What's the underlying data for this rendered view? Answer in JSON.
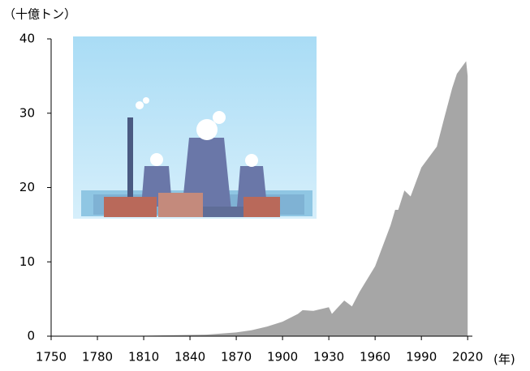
{
  "chart_data": {
    "type": "area",
    "y_label": "（十億トン）",
    "x_label": "(年)",
    "x": [
      1750,
      1800,
      1850,
      1870,
      1880,
      1890,
      1900,
      1910,
      1913,
      1920,
      1930,
      1932,
      1940,
      1945,
      1950,
      1960,
      1970,
      1973,
      1975,
      1979,
      1983,
      1990,
      2000,
      2005,
      2010,
      2013,
      2019,
      2020
    ],
    "values": [
      0.01,
      0.03,
      0.2,
      0.5,
      0.8,
      1.3,
      1.95,
      3.0,
      3.5,
      3.4,
      3.9,
      3.0,
      4.8,
      4.0,
      6.0,
      9.4,
      14.9,
      17.0,
      17.0,
      19.6,
      18.8,
      22.7,
      25.5,
      29.5,
      33.4,
      35.3,
      37.0,
      35.0
    ],
    "color": "#a6a6a6",
    "xlim": [
      1750,
      2022
    ],
    "xticks": [
      1750,
      1780,
      1810,
      1840,
      1870,
      1900,
      1930,
      1960,
      1990,
      2020
    ],
    "ylim": [
      0,
      40
    ],
    "yticks": [
      0,
      10,
      20,
      30,
      40
    ],
    "grid": false
  }
}
